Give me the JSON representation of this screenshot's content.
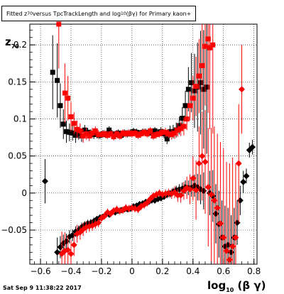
{
  "title_parts": {
    "pre": "Fitted  z",
    "sub1": "70",
    "mid": " versus TpcTrackLength and log",
    "sub2": "10",
    "post": "(βγ) for Primary kaon+"
  },
  "footer": "Sat Sep  9 11:38:22 2017",
  "ylabel_parts": {
    "main": "z",
    "sub": "70"
  },
  "xlabel_parts": {
    "pre": "log",
    "sub": "10",
    "post": " (β γ)"
  },
  "colors": {
    "series_black": "#000000",
    "series_red": "#ff0000",
    "grid": "#000000"
  },
  "chart_data": {
    "type": "scatter",
    "xlim": [
      -0.67,
      0.82
    ],
    "ylim": [
      -0.096,
      0.228
    ],
    "grid": true,
    "xticks": [
      -0.6,
      -0.4,
      -0.2,
      0,
      0.2,
      0.4,
      0.6,
      0.8
    ],
    "xtick_labels": [
      "−0.6",
      "−0.4",
      "−0.2",
      "0",
      "0.2",
      "0.4",
      "0.6",
      "0.8"
    ],
    "yticks": [
      -0.05,
      0,
      0.05,
      0.1,
      0.15,
      0.2
    ],
    "ytick_labels": [
      "−0.05",
      "0",
      "0.05",
      "0.1",
      "0.15",
      "0.2"
    ],
    "series": [
      {
        "marker": "square",
        "color": "#000000",
        "x": [
          -0.52,
          -0.49,
          -0.47,
          -0.45,
          -0.43,
          -0.41,
          -0.39,
          -0.37,
          -0.35,
          -0.33,
          -0.31,
          -0.29,
          -0.27,
          -0.25,
          -0.23,
          -0.21,
          -0.19,
          -0.17,
          -0.15,
          -0.13,
          -0.11,
          -0.09,
          -0.07,
          -0.05,
          -0.03,
          -0.01,
          0.01,
          0.03,
          0.05,
          0.07,
          0.09,
          0.11,
          0.13,
          0.15,
          0.17,
          0.19,
          0.21,
          0.23,
          0.25,
          0.27,
          0.29,
          0.31,
          0.33,
          0.35,
          0.37,
          0.39,
          0.41,
          0.43,
          0.45,
          0.47,
          0.49
        ],
        "y": [
          0.163,
          0.152,
          0.118,
          0.093,
          0.083,
          0.082,
          0.081,
          0.078,
          0.08,
          0.077,
          0.085,
          0.082,
          0.08,
          0.079,
          0.079,
          0.078,
          0.08,
          0.079,
          0.085,
          0.08,
          0.079,
          0.081,
          0.078,
          0.081,
          0.08,
          0.081,
          0.083,
          0.082,
          0.08,
          0.082,
          0.082,
          0.081,
          0.082,
          0.084,
          0.081,
          0.083,
          0.08,
          0.073,
          0.083,
          0.083,
          0.085,
          0.091,
          0.101,
          0.118,
          0.14,
          0.149,
          0.138,
          0.143,
          0.149,
          0.14,
          0.143
        ],
        "yerr": [
          0.05,
          0.05,
          0.03,
          0.02,
          0.015,
          0.012,
          0.01,
          0.01,
          0.008,
          0.008,
          0.007,
          0.006,
          0.006,
          0.006,
          0.005,
          0.005,
          0.005,
          0.005,
          0.005,
          0.005,
          0.005,
          0.005,
          0.005,
          0.005,
          0.005,
          0.005,
          0.005,
          0.005,
          0.005,
          0.005,
          0.005,
          0.005,
          0.005,
          0.005,
          0.005,
          0.006,
          0.006,
          0.007,
          0.008,
          0.009,
          0.01,
          0.012,
          0.015,
          0.02,
          0.03,
          0.04,
          0.05,
          0.06,
          0.07,
          0.08,
          0.09
        ]
      },
      {
        "marker": "square",
        "color": "#ff0000",
        "x": [
          -0.48,
          -0.44,
          -0.42,
          -0.4,
          -0.38,
          -0.36,
          -0.34,
          -0.32,
          -0.3,
          -0.28,
          -0.26,
          -0.24,
          -0.22,
          -0.2,
          -0.18,
          -0.16,
          -0.14,
          -0.12,
          -0.1,
          -0.08,
          -0.06,
          -0.04,
          -0.02,
          0.0,
          0.02,
          0.04,
          0.06,
          0.08,
          0.1,
          0.12,
          0.14,
          0.16,
          0.18,
          0.2,
          0.22,
          0.24,
          0.26,
          0.28,
          0.3,
          0.32,
          0.34,
          0.36,
          0.38,
          0.4,
          0.42,
          0.44,
          0.46,
          0.48,
          0.5,
          0.51,
          0.53
        ],
        "y": [
          0.228,
          0.135,
          0.128,
          0.103,
          0.094,
          0.086,
          0.084,
          0.077,
          0.08,
          0.077,
          0.081,
          0.084,
          0.079,
          0.079,
          0.08,
          0.078,
          0.08,
          0.076,
          0.08,
          0.077,
          0.081,
          0.08,
          0.081,
          0.08,
          0.081,
          0.078,
          0.08,
          0.082,
          0.08,
          0.084,
          0.077,
          0.079,
          0.08,
          0.082,
          0.082,
          0.08,
          0.079,
          0.081,
          0.085,
          0.087,
          0.09,
          0.1,
          0.118,
          0.128,
          0.144,
          0.158,
          0.172,
          0.198,
          0.208,
          0.196,
          0.2
        ],
        "yerr": [
          0.06,
          0.04,
          0.03,
          0.02,
          0.015,
          0.012,
          0.01,
          0.009,
          0.008,
          0.007,
          0.007,
          0.006,
          0.006,
          0.005,
          0.005,
          0.005,
          0.005,
          0.005,
          0.005,
          0.005,
          0.005,
          0.005,
          0.005,
          0.005,
          0.005,
          0.005,
          0.005,
          0.005,
          0.005,
          0.005,
          0.005,
          0.005,
          0.005,
          0.005,
          0.006,
          0.006,
          0.007,
          0.008,
          0.009,
          0.01,
          0.012,
          0.015,
          0.02,
          0.03,
          0.04,
          0.05,
          0.06,
          0.08,
          0.1,
          0.11,
          0.12
        ]
      },
      {
        "marker": "diamond",
        "color": "#000000",
        "x": [
          -0.57,
          -0.49,
          -0.47,
          -0.45,
          -0.43,
          -0.41,
          -0.39,
          -0.37,
          -0.35,
          -0.33,
          -0.31,
          -0.29,
          -0.27,
          -0.25,
          -0.23,
          -0.21,
          -0.19,
          -0.17,
          -0.15,
          -0.13,
          -0.11,
          -0.09,
          -0.07,
          -0.05,
          -0.03,
          -0.01,
          0.01,
          0.03,
          0.05,
          0.07,
          0.09,
          0.11,
          0.13,
          0.15,
          0.17,
          0.19,
          0.21,
          0.23,
          0.25,
          0.27,
          0.29,
          0.31,
          0.33,
          0.35,
          0.37,
          0.39,
          0.41,
          0.43,
          0.45,
          0.47,
          0.51,
          0.53,
          0.55,
          0.57,
          0.59,
          0.61,
          0.63,
          0.65,
          0.67,
          0.69,
          0.71,
          0.73,
          0.75,
          0.77,
          0.79
        ],
        "y": [
          0.016,
          -0.08,
          -0.073,
          -0.068,
          -0.065,
          -0.059,
          -0.057,
          -0.052,
          -0.05,
          -0.046,
          -0.043,
          -0.041,
          -0.04,
          -0.038,
          -0.035,
          -0.033,
          -0.032,
          -0.029,
          -0.029,
          -0.026,
          -0.026,
          -0.024,
          -0.023,
          -0.022,
          -0.022,
          -0.021,
          -0.018,
          -0.017,
          -0.015,
          -0.014,
          -0.012,
          -0.012,
          -0.01,
          -0.01,
          -0.008,
          -0.007,
          -0.005,
          -0.002,
          -0.001,
          0.002,
          0.004,
          0.005,
          0.006,
          0.008,
          0.007,
          0.007,
          0.01,
          0.008,
          0.005,
          0.003,
          0.0,
          -0.004,
          -0.028,
          -0.042,
          -0.06,
          -0.072,
          -0.07,
          -0.08,
          -0.06,
          -0.04,
          -0.01,
          0.015,
          0.023,
          0.058,
          0.062
        ],
        "yerr": [
          0.03,
          0.02,
          0.015,
          0.012,
          0.01,
          0.009,
          0.008,
          0.007,
          0.006,
          0.006,
          0.005,
          0.005,
          0.005,
          0.005,
          0.004,
          0.004,
          0.004,
          0.004,
          0.004,
          0.004,
          0.004,
          0.004,
          0.004,
          0.004,
          0.004,
          0.004,
          0.004,
          0.004,
          0.004,
          0.004,
          0.004,
          0.004,
          0.004,
          0.004,
          0.004,
          0.004,
          0.004,
          0.005,
          0.005,
          0.005,
          0.006,
          0.007,
          0.008,
          0.009,
          0.01,
          0.012,
          0.015,
          0.018,
          0.02,
          0.025,
          0.03,
          0.035,
          0.04,
          0.045,
          0.05,
          0.055,
          0.05,
          0.05,
          0.04,
          0.03,
          0.02,
          0.015,
          0.01,
          0.01,
          0.01
        ]
      },
      {
        "marker": "diamond",
        "color": "#ff0000",
        "x": [
          -0.46,
          -0.44,
          -0.42,
          -0.4,
          -0.38,
          -0.36,
          -0.34,
          -0.32,
          -0.3,
          -0.28,
          -0.26,
          -0.24,
          -0.22,
          -0.2,
          -0.18,
          -0.16,
          -0.14,
          -0.12,
          -0.1,
          -0.08,
          -0.06,
          -0.04,
          -0.02,
          0.0,
          0.02,
          0.04,
          0.06,
          0.08,
          0.1,
          0.12,
          0.14,
          0.16,
          0.18,
          0.2,
          0.22,
          0.24,
          0.26,
          0.28,
          0.3,
          0.32,
          0.34,
          0.36,
          0.38,
          0.4,
          0.42,
          0.44,
          0.46,
          0.48,
          0.5,
          0.52,
          0.54,
          0.56,
          0.58,
          0.6,
          0.62,
          0.64,
          0.66,
          0.68,
          0.7,
          0.72
        ],
        "y": [
          -0.082,
          -0.078,
          -0.077,
          -0.082,
          -0.07,
          -0.055,
          -0.053,
          -0.049,
          -0.046,
          -0.045,
          -0.044,
          -0.042,
          -0.04,
          -0.034,
          -0.031,
          -0.026,
          -0.028,
          -0.024,
          -0.022,
          -0.024,
          -0.023,
          -0.02,
          -0.021,
          -0.02,
          -0.021,
          -0.022,
          -0.018,
          -0.016,
          -0.013,
          -0.008,
          -0.004,
          -0.002,
          0.0,
          -0.002,
          -0.001,
          0.0,
          -0.001,
          0.001,
          -0.003,
          -0.003,
          0.003,
          0.007,
          0.005,
          0.02,
          0.004,
          0.04,
          0.05,
          0.042,
          0.008,
          -0.002,
          -0.01,
          -0.02,
          -0.041,
          -0.06,
          -0.078,
          -0.09,
          -0.072,
          -0.06,
          0.04,
          0.14
        ],
        "yerr": [
          0.03,
          0.025,
          0.02,
          0.018,
          0.015,
          0.012,
          0.01,
          0.009,
          0.008,
          0.007,
          0.007,
          0.006,
          0.006,
          0.005,
          0.005,
          0.005,
          0.005,
          0.005,
          0.005,
          0.005,
          0.005,
          0.005,
          0.005,
          0.005,
          0.005,
          0.005,
          0.005,
          0.005,
          0.005,
          0.005,
          0.005,
          0.005,
          0.005,
          0.005,
          0.006,
          0.006,
          0.007,
          0.008,
          0.009,
          0.01,
          0.012,
          0.015,
          0.02,
          0.03,
          0.04,
          0.05,
          0.06,
          0.07,
          0.08,
          0.09,
          0.1,
          0.1,
          0.11,
          0.12,
          0.12,
          0.13,
          0.12,
          0.1,
          0.08,
          0.06
        ]
      }
    ]
  }
}
